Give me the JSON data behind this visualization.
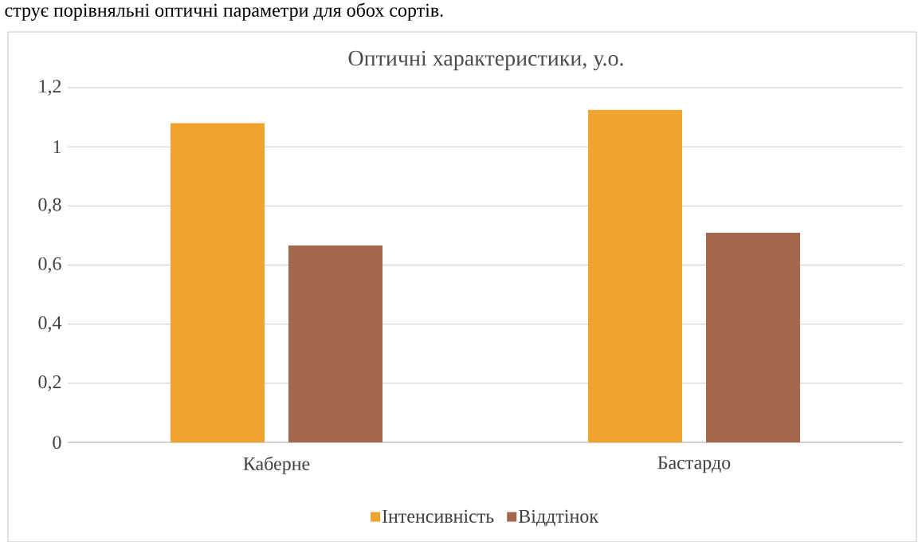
{
  "chart_data": {
    "type": "bar",
    "title": "Оптичні характеристики, у.о.",
    "annotations": [
      "струє порівняльні оптичні параметри для обох сортів."
    ],
    "categories": [
      "Каберне",
      "Бастардо"
    ],
    "series": [
      {
        "name": "Інтенсивність",
        "color": "#f0a430",
        "values": [
          1.08,
          1.125
        ]
      },
      {
        "name": "Віддтінок",
        "color": "#a5664e",
        "values": [
          0.666,
          0.709
        ]
      }
    ],
    "ylim": [
      0,
      1.2
    ],
    "yticks": [
      {
        "value": 0,
        "label": "0"
      },
      {
        "value": 0.2,
        "label": "0,2"
      },
      {
        "value": 0.4,
        "label": "0,4"
      },
      {
        "value": 0.6,
        "label": "0,6"
      },
      {
        "value": 0.8,
        "label": "0,8"
      },
      {
        "value": 1,
        "label": "1"
      },
      {
        "value": 1.2,
        "label": "1,2"
      }
    ],
    "grid": "y",
    "legend": "bottom"
  }
}
